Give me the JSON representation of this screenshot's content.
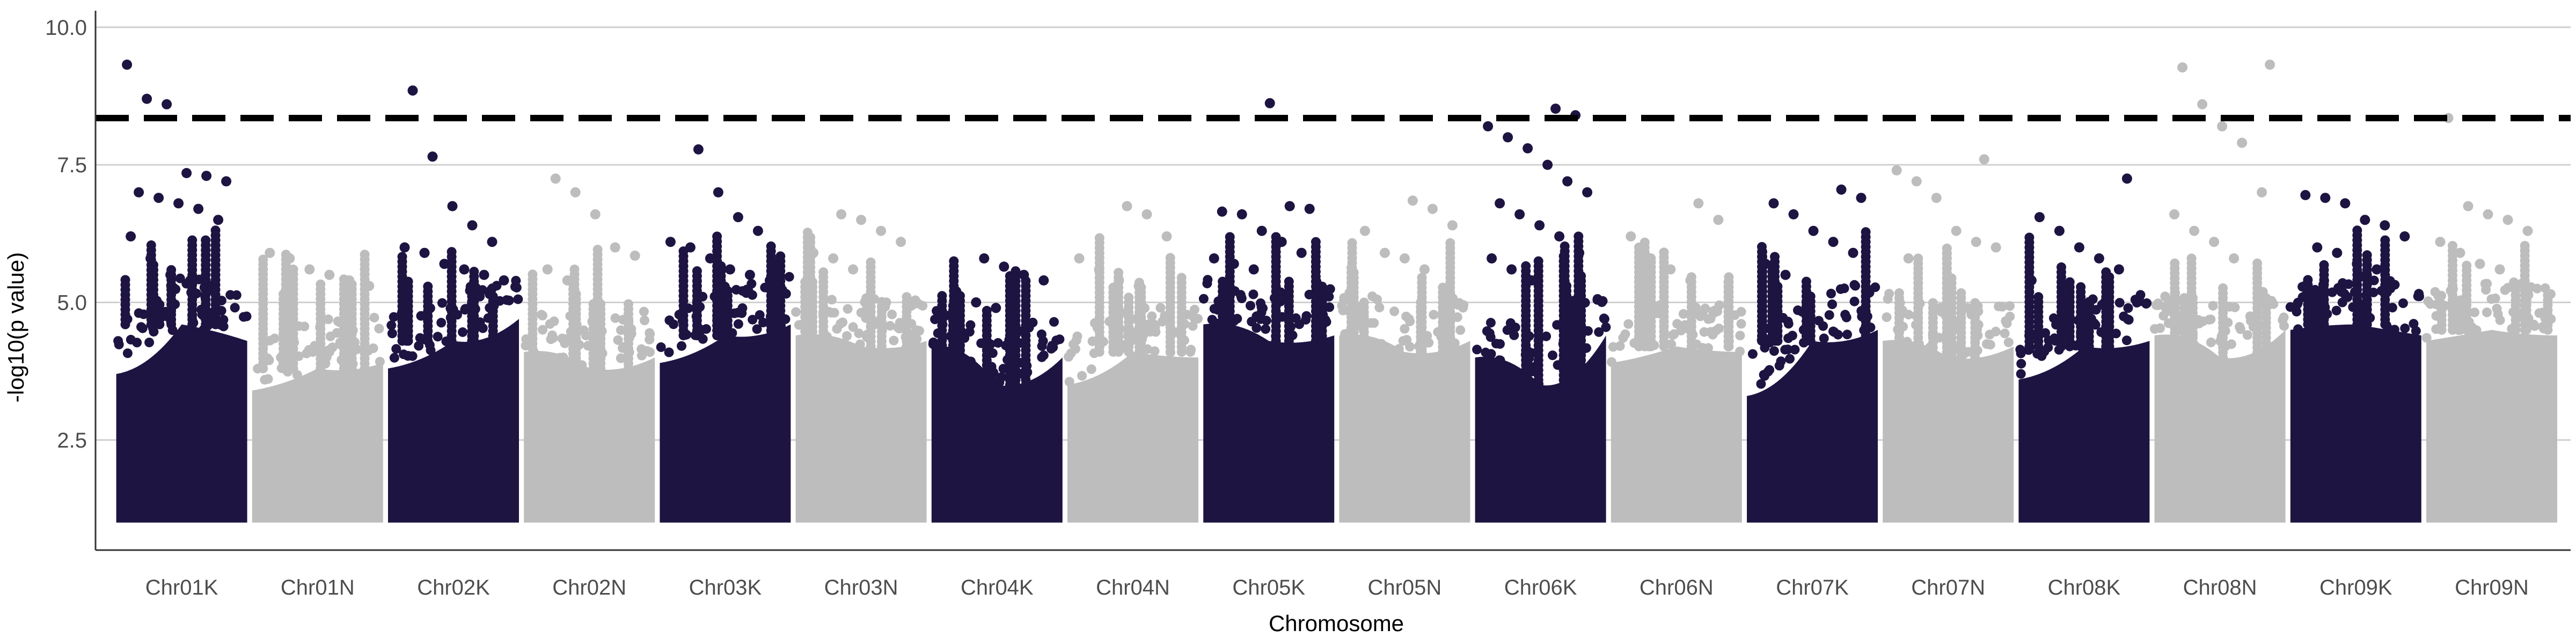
{
  "chart_data": {
    "type": "scatter",
    "title": "",
    "xlabel": "Chromosome",
    "ylabel": "-log10(p value)",
    "ylim": [
      0.5,
      10.3
    ],
    "yticks": [
      "2.5",
      "5.0",
      "7.5",
      "10.0"
    ],
    "ytick_values": [
      2.5,
      5.0,
      7.5,
      10.0
    ],
    "grid": "horizontal major only",
    "legend": "none",
    "threshold": 8.35,
    "colors": {
      "K": "#1e1442",
      "N": "#bdbdbd",
      "threshold": "#000000"
    },
    "categories": [
      "Chr01K",
      "Chr01N",
      "Chr02K",
      "Chr02N",
      "Chr03K",
      "Chr03N",
      "Chr04K",
      "Chr04N",
      "Chr05K",
      "Chr05N",
      "Chr06K",
      "Chr06N",
      "Chr07K",
      "Chr07N",
      "Chr08K",
      "Chr08N",
      "Chr09K",
      "Chr09N"
    ],
    "series": [
      {
        "chromosome": "Chr01K",
        "color": "#1e1442",
        "bulk_top": [
          3.7,
          4.6,
          4.3
        ],
        "high_y": [
          9.32,
          8.7,
          8.6,
          7.35,
          7.3,
          7.2,
          7.0,
          6.9,
          6.8,
          6.7,
          6.5,
          6.2,
          5.8,
          5.5,
          5.4,
          5.3
        ]
      },
      {
        "chromosome": "Chr01N",
        "color": "#bdbdbd",
        "bulk_top": [
          3.4,
          3.8,
          3.9
        ],
        "high_y": [
          5.9,
          5.8,
          5.6,
          5.5,
          5.4,
          5.3
        ]
      },
      {
        "chromosome": "Chr02K",
        "color": "#1e1442",
        "bulk_top": [
          3.8,
          4.3,
          4.7
        ],
        "high_y": [
          8.85,
          7.65,
          6.75,
          6.4,
          6.1,
          6.0,
          5.9,
          5.7,
          5.6,
          5.5,
          5.4
        ]
      },
      {
        "chromosome": "Chr02N",
        "color": "#bdbdbd",
        "bulk_top": [
          4.1,
          3.8,
          4.0
        ],
        "high_y": [
          7.25,
          7.0,
          6.6,
          6.0,
          5.85,
          5.6,
          5.4
        ]
      },
      {
        "chromosome": "Chr03K",
        "color": "#1e1442",
        "bulk_top": [
          3.9,
          4.4,
          4.6
        ],
        "high_y": [
          7.78,
          7.0,
          6.55,
          6.3,
          6.1,
          6.0,
          5.8,
          5.6,
          5.5,
          5.4
        ]
      },
      {
        "chromosome": "Chr03N",
        "color": "#bdbdbd",
        "bulk_top": [
          4.4,
          4.2,
          4.3
        ],
        "high_y": [
          6.6,
          6.5,
          6.3,
          6.1,
          5.9,
          5.8,
          5.6
        ]
      },
      {
        "chromosome": "Chr04K",
        "color": "#1e1442",
        "bulk_top": [
          4.2,
          3.5,
          4.0
        ],
        "high_y": [
          5.8,
          5.65,
          5.5,
          5.4,
          5.2,
          5.0,
          4.9
        ]
      },
      {
        "chromosome": "Chr04N",
        "color": "#bdbdbd",
        "bulk_top": [
          3.5,
          4.1,
          4.0
        ],
        "high_y": [
          6.75,
          6.6,
          6.2,
          5.8,
          5.6,
          5.4,
          5.3
        ]
      },
      {
        "chromosome": "Chr05K",
        "color": "#1e1442",
        "bulk_top": [
          4.6,
          4.3,
          4.4
        ],
        "high_y": [
          8.62,
          6.75,
          6.7,
          6.65,
          6.6,
          6.3,
          6.1,
          5.9,
          5.8,
          5.7,
          5.6
        ]
      },
      {
        "chromosome": "Chr05N",
        "color": "#bdbdbd",
        "bulk_top": [
          4.4,
          4.1,
          4.3
        ],
        "high_y": [
          6.85,
          6.7,
          6.4,
          6.3,
          5.9,
          5.8,
          5.6
        ]
      },
      {
        "chromosome": "Chr06K",
        "color": "#1e1442",
        "bulk_top": [
          4.0,
          3.5,
          4.4
        ],
        "high_y": [
          8.52,
          8.4,
          8.2,
          8.0,
          7.8,
          7.5,
          7.2,
          7.0,
          6.8,
          6.6,
          6.4,
          6.2,
          5.9,
          5.8,
          5.6,
          5.4
        ]
      },
      {
        "chromosome": "Chr06N",
        "color": "#bdbdbd",
        "bulk_top": [
          3.9,
          4.2,
          4.1
        ],
        "high_y": [
          6.8,
          6.5,
          6.2,
          5.8,
          5.6,
          5.4
        ]
      },
      {
        "chromosome": "Chr07K",
        "color": "#1e1442",
        "bulk_top": [
          3.3,
          4.3,
          4.5
        ],
        "high_y": [
          7.05,
          6.9,
          6.8,
          6.6,
          6.3,
          6.1,
          5.9,
          5.7,
          5.5
        ]
      },
      {
        "chromosome": "Chr07N",
        "color": "#bdbdbd",
        "bulk_top": [
          4.3,
          4.0,
          4.2
        ],
        "high_y": [
          7.6,
          7.4,
          7.2,
          6.9,
          6.3,
          6.1,
          6.0,
          5.8
        ]
      },
      {
        "chromosome": "Chr08K",
        "color": "#1e1442",
        "bulk_top": [
          3.6,
          4.2,
          4.3
        ],
        "high_y": [
          7.25,
          6.55,
          6.3,
          6.0,
          5.8,
          5.6,
          5.4
        ]
      },
      {
        "chromosome": "Chr08N",
        "color": "#bdbdbd",
        "bulk_top": [
          4.4,
          4.0,
          4.5
        ],
        "high_y": [
          9.32,
          9.27,
          8.6,
          8.2,
          7.9,
          7.0,
          6.6,
          6.3,
          6.1,
          5.8
        ]
      },
      {
        "chromosome": "Chr09K",
        "color": "#1e1442",
        "bulk_top": [
          4.5,
          4.6,
          4.4
        ],
        "high_y": [
          6.95,
          6.9,
          6.8,
          6.5,
          6.4,
          6.2,
          6.0,
          5.9,
          5.7,
          5.6
        ]
      },
      {
        "chromosome": "Chr09N",
        "color": "#bdbdbd",
        "bulk_top": [
          4.3,
          4.5,
          4.4
        ],
        "high_y": [
          8.35,
          6.75,
          6.6,
          6.5,
          6.3,
          6.1,
          5.9,
          5.7,
          5.6
        ]
      }
    ]
  }
}
